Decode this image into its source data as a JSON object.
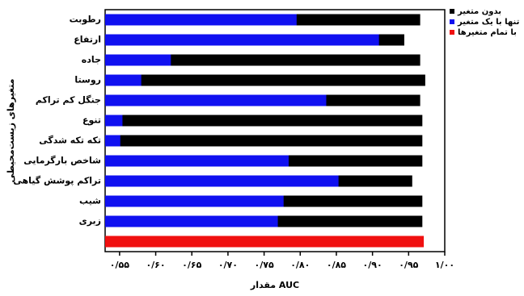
{
  "chart_data": {
    "type": "overlap-barh",
    "x_label": "مقدار AUC",
    "y_label": "متغیرهای زیست‌محیطی",
    "categories": [
      "رطوبت",
      "ارتفاع",
      "جاده",
      "روستا",
      "جنگل کم تراکم",
      "تنوع",
      "تکه تکه شدگی",
      "شاخص بارگرمایی",
      "تراکم پوشش گیاهی",
      "شیب",
      "زبری",
      null
    ],
    "series": [
      {
        "name": "بدون متغیر",
        "color": "#000000",
        "values": [
          0.966,
          0.944,
          0.966,
          0.973,
          0.966,
          0.969,
          0.969,
          0.969,
          0.955,
          0.969,
          0.969,
          null
        ]
      },
      {
        "name": "تنها با یک متغیر",
        "color": "#1010f0",
        "values": [
          0.795,
          0.909,
          0.621,
          0.58,
          0.836,
          0.554,
          0.551,
          0.784,
          0.853,
          0.777,
          0.769,
          null
        ]
      },
      {
        "name": "با تمام متغیرها",
        "color": "#f01010",
        "values": [
          null,
          null,
          null,
          null,
          null,
          null,
          null,
          null,
          null,
          null,
          null,
          0.971
        ]
      }
    ],
    "xlim": [
      0.53,
      1.0
    ],
    "xticks": [
      {
        "value": 0.55,
        "label": "۰/۵۵"
      },
      {
        "value": 0.6,
        "label": "۰/۶۰"
      },
      {
        "value": 0.65,
        "label": "۰/۶۵"
      },
      {
        "value": 0.7,
        "label": "۰/۷۰"
      },
      {
        "value": 0.75,
        "label": "۰/۷۵"
      },
      {
        "value": 0.8,
        "label": "۰/۸۰"
      },
      {
        "value": 0.85,
        "label": "۰/۸۵"
      },
      {
        "value": 0.9,
        "label": "۰/۹۰"
      },
      {
        "value": 0.95,
        "label": "۰/۹۵"
      },
      {
        "value": 1.0,
        "label": "۱/۰۰"
      }
    ],
    "legend": "top-right"
  }
}
